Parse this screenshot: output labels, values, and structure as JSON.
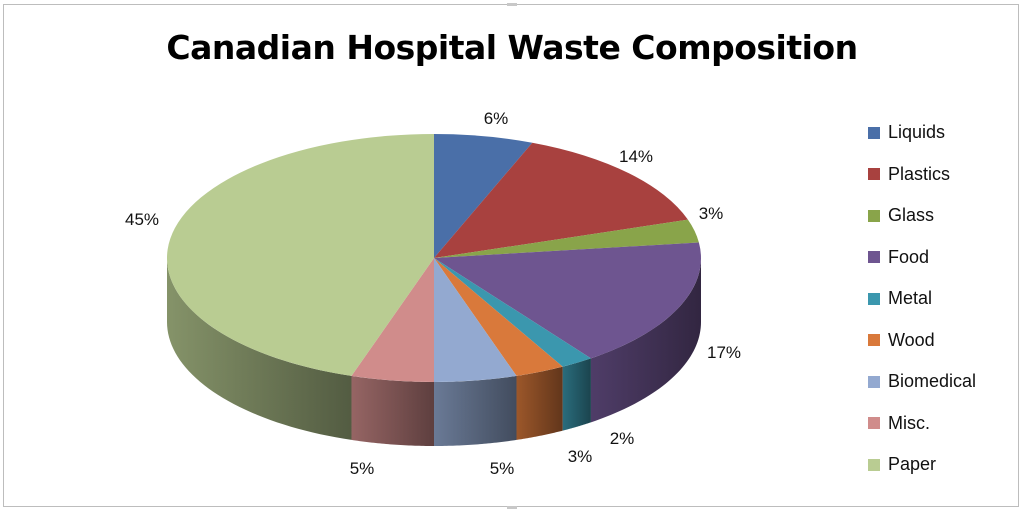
{
  "chart_data": {
    "type": "pie",
    "title": "Canadian Hospital Waste Composition",
    "categories": [
      "Liquids",
      "Plastics",
      "Glass",
      "Food",
      "Metal",
      "Wood",
      "Biomedical",
      "Misc.",
      "Paper"
    ],
    "values": [
      6,
      14,
      3,
      17,
      2,
      3,
      5,
      5,
      45
    ],
    "labels": [
      "6%",
      "14%",
      "3%",
      "17%",
      "2%",
      "3%",
      "5%",
      "5%",
      "45%"
    ],
    "colors": [
      "#4a6fa8",
      "#a8413f",
      "#89a44a",
      "#6e5590",
      "#3b97ae",
      "#d9793b",
      "#93a9d0",
      "#d08c8b",
      "#b9cc92"
    ],
    "legend_position": "right",
    "style": "3d"
  }
}
